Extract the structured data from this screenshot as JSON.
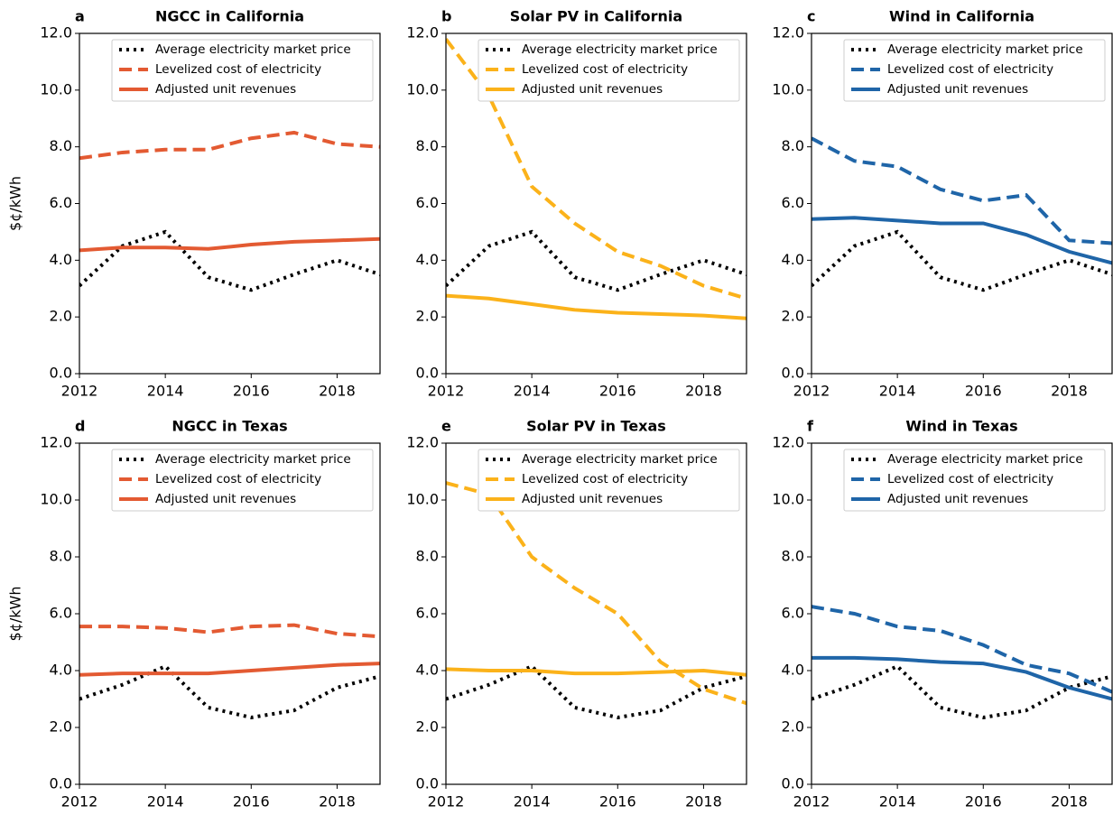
{
  "chart_data": [
    {
      "type": "line",
      "label": "a",
      "title": "NGCC in California",
      "ylabel": "$¢/kWh",
      "x": [
        2012,
        2013,
        2014,
        2015,
        2016,
        2017,
        2018,
        2019
      ],
      "xlim": [
        2012,
        2019
      ],
      "xticks": [
        2012,
        2014,
        2016,
        2018
      ],
      "ylim": [
        0,
        12
      ],
      "yticks": [
        {
          "value": 0,
          "label": "0.0"
        },
        {
          "value": 2,
          "label": "2.0"
        },
        {
          "value": 4,
          "label": "4.0"
        },
        {
          "value": 6,
          "label": "6.0"
        },
        {
          "value": 8,
          "label": "8.0"
        },
        {
          "value": 10,
          "label": "10.0"
        },
        {
          "value": 12,
          "label": "12.0"
        }
      ],
      "legend": "upper right",
      "series": [
        {
          "name": "Average electricity market price",
          "color": "#000000",
          "style": "dotted",
          "values": [
            3.1,
            4.5,
            5.0,
            3.4,
            2.95,
            3.5,
            4.0,
            3.5
          ]
        },
        {
          "name": "Levelized cost of electricity",
          "color": "#e35a32",
          "style": "dashed",
          "values": [
            7.6,
            7.8,
            7.9,
            7.9,
            8.3,
            8.5,
            8.1,
            8.0
          ]
        },
        {
          "name": "Adjusted unit revenues",
          "color": "#e35a32",
          "style": "solid",
          "values": [
            4.35,
            4.45,
            4.45,
            4.4,
            4.55,
            4.65,
            4.7,
            4.75
          ]
        }
      ]
    },
    {
      "type": "line",
      "label": "b",
      "title": "Solar PV in California",
      "x": [
        2012,
        2013,
        2014,
        2015,
        2016,
        2017,
        2018,
        2019
      ],
      "xlim": [
        2012,
        2019
      ],
      "xticks": [
        2012,
        2014,
        2016,
        2018
      ],
      "ylim": [
        0,
        12
      ],
      "yticks": [
        {
          "value": 0,
          "label": "0.0"
        },
        {
          "value": 2,
          "label": "2.0"
        },
        {
          "value": 4,
          "label": "4.0"
        },
        {
          "value": 6,
          "label": "6.0"
        },
        {
          "value": 8,
          "label": "8.0"
        },
        {
          "value": 10,
          "label": "10.0"
        },
        {
          "value": 12,
          "label": "12.0"
        }
      ],
      "legend": "upper right",
      "series": [
        {
          "name": "Average electricity market price",
          "color": "#000000",
          "style": "dotted",
          "values": [
            3.1,
            4.5,
            5.0,
            3.4,
            2.95,
            3.5,
            4.0,
            3.5
          ]
        },
        {
          "name": "Levelized cost of electricity",
          "color": "#fbb21a",
          "style": "dashed",
          "values": [
            11.8,
            9.8,
            6.6,
            5.3,
            4.3,
            3.8,
            3.1,
            2.65
          ]
        },
        {
          "name": "Adjusted unit revenues",
          "color": "#fbb21a",
          "style": "solid",
          "values": [
            2.75,
            2.65,
            2.45,
            2.25,
            2.15,
            2.1,
            2.05,
            1.95
          ]
        }
      ]
    },
    {
      "type": "line",
      "label": "c",
      "title": "Wind in California",
      "x": [
        2012,
        2013,
        2014,
        2015,
        2016,
        2017,
        2018,
        2019
      ],
      "xlim": [
        2012,
        2019
      ],
      "xticks": [
        2012,
        2014,
        2016,
        2018
      ],
      "ylim": [
        0,
        12
      ],
      "yticks": [
        {
          "value": 0,
          "label": "0.0"
        },
        {
          "value": 2,
          "label": "2.0"
        },
        {
          "value": 4,
          "label": "4.0"
        },
        {
          "value": 6,
          "label": "6.0"
        },
        {
          "value": 8,
          "label": "8.0"
        },
        {
          "value": 10,
          "label": "10.0"
        },
        {
          "value": 12,
          "label": "12.0"
        }
      ],
      "legend": "upper right",
      "series": [
        {
          "name": "Average electricity market price",
          "color": "#000000",
          "style": "dotted",
          "values": [
            3.1,
            4.5,
            5.0,
            3.4,
            2.95,
            3.5,
            4.0,
            3.5
          ]
        },
        {
          "name": "Levelized cost of electricity",
          "color": "#1f65a8",
          "style": "dashed",
          "values": [
            8.3,
            7.5,
            7.3,
            6.5,
            6.1,
            6.3,
            4.7,
            4.6
          ]
        },
        {
          "name": "Adjusted unit revenues",
          "color": "#1f65a8",
          "style": "solid",
          "values": [
            5.45,
            5.5,
            5.4,
            5.3,
            5.3,
            4.9,
            4.3,
            3.9
          ]
        }
      ]
    },
    {
      "type": "line",
      "label": "d",
      "title": "NGCC in Texas",
      "ylabel": "$¢/kWh",
      "x": [
        2012,
        2013,
        2014,
        2015,
        2016,
        2017,
        2018,
        2019
      ],
      "xlim": [
        2012,
        2019
      ],
      "xticks": [
        2012,
        2014,
        2016,
        2018
      ],
      "ylim": [
        0,
        12
      ],
      "yticks": [
        {
          "value": 0,
          "label": "0.0"
        },
        {
          "value": 2,
          "label": "2.0"
        },
        {
          "value": 4,
          "label": "4.0"
        },
        {
          "value": 6,
          "label": "6.0"
        },
        {
          "value": 8,
          "label": "8.0"
        },
        {
          "value": 10,
          "label": "10.0"
        },
        {
          "value": 12,
          "label": "12.0"
        }
      ],
      "legend": "upper right",
      "series": [
        {
          "name": "Average electricity market price",
          "color": "#000000",
          "style": "dotted",
          "values": [
            3.0,
            3.5,
            4.15,
            2.7,
            2.35,
            2.6,
            3.4,
            3.8
          ]
        },
        {
          "name": "Levelized cost of electricity",
          "color": "#e35a32",
          "style": "dashed",
          "values": [
            5.55,
            5.55,
            5.5,
            5.35,
            5.55,
            5.6,
            5.3,
            5.2
          ]
        },
        {
          "name": "Adjusted unit revenues",
          "color": "#e35a32",
          "style": "solid",
          "values": [
            3.85,
            3.9,
            3.9,
            3.9,
            4.0,
            4.1,
            4.2,
            4.25
          ]
        }
      ]
    },
    {
      "type": "line",
      "label": "e",
      "title": "Solar PV in Texas",
      "x": [
        2012,
        2013,
        2014,
        2015,
        2016,
        2017,
        2018,
        2019
      ],
      "xlim": [
        2012,
        2019
      ],
      "xticks": [
        2012,
        2014,
        2016,
        2018
      ],
      "ylim": [
        0,
        12
      ],
      "yticks": [
        {
          "value": 0,
          "label": "0.0"
        },
        {
          "value": 2,
          "label": "2.0"
        },
        {
          "value": 4,
          "label": "4.0"
        },
        {
          "value": 6,
          "label": "6.0"
        },
        {
          "value": 8,
          "label": "8.0"
        },
        {
          "value": 10,
          "label": "10.0"
        },
        {
          "value": 12,
          "label": "12.0"
        }
      ],
      "legend": "upper right",
      "series": [
        {
          "name": "Average electricity market price",
          "color": "#000000",
          "style": "dotted",
          "values": [
            3.0,
            3.5,
            4.15,
            2.7,
            2.35,
            2.6,
            3.4,
            3.8
          ]
        },
        {
          "name": "Levelized cost of electricity",
          "color": "#fbb21a",
          "style": "dashed",
          "values": [
            10.6,
            10.2,
            8.0,
            6.9,
            6.0,
            4.3,
            3.35,
            2.85
          ]
        },
        {
          "name": "Adjusted unit revenues",
          "color": "#fbb21a",
          "style": "solid",
          "values": [
            4.05,
            4.0,
            4.0,
            3.9,
            3.9,
            3.95,
            4.0,
            3.85
          ]
        }
      ]
    },
    {
      "type": "line",
      "label": "f",
      "title": "Wind in Texas",
      "x": [
        2012,
        2013,
        2014,
        2015,
        2016,
        2017,
        2018,
        2019
      ],
      "xlim": [
        2012,
        2019
      ],
      "xticks": [
        2012,
        2014,
        2016,
        2018
      ],
      "ylim": [
        0,
        12
      ],
      "yticks": [
        {
          "value": 0,
          "label": "0.0"
        },
        {
          "value": 2,
          "label": "2.0"
        },
        {
          "value": 4,
          "label": "4.0"
        },
        {
          "value": 6,
          "label": "6.0"
        },
        {
          "value": 8,
          "label": "8.0"
        },
        {
          "value": 10,
          "label": "10.0"
        },
        {
          "value": 12,
          "label": "12.0"
        }
      ],
      "legend": "upper right",
      "series": [
        {
          "name": "Average electricity market price",
          "color": "#000000",
          "style": "dotted",
          "values": [
            3.0,
            3.5,
            4.15,
            2.7,
            2.35,
            2.6,
            3.4,
            3.8
          ]
        },
        {
          "name": "Levelized cost of electricity",
          "color": "#1f65a8",
          "style": "dashed",
          "values": [
            6.25,
            6.0,
            5.55,
            5.4,
            4.9,
            4.2,
            3.9,
            3.25
          ]
        },
        {
          "name": "Adjusted unit revenues",
          "color": "#1f65a8",
          "style": "solid",
          "values": [
            4.45,
            4.45,
            4.4,
            4.3,
            4.25,
            3.95,
            3.4,
            3.0
          ]
        }
      ]
    }
  ]
}
